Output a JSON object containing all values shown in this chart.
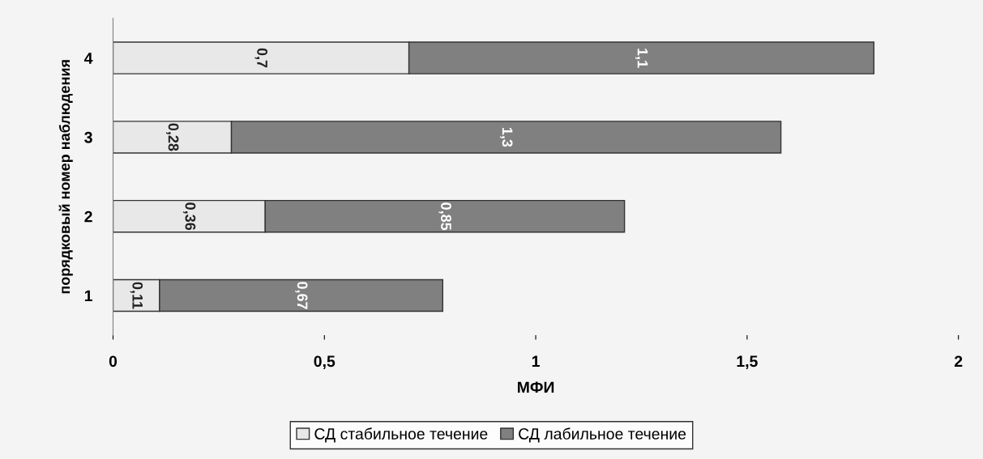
{
  "chart_data": {
    "type": "bar",
    "orientation": "horizontal",
    "stacked": true,
    "xlabel": "МФИ",
    "ylabel": "порядковый номер наблюдения",
    "categories": [
      "4",
      "3",
      "2",
      "1"
    ],
    "series": [
      {
        "name": "СД стабильное течение",
        "color": "#e8e8e8",
        "values": [
          0.7,
          0.28,
          0.36,
          0.11
        ],
        "value_labels": [
          "0,7",
          "0,28",
          "0,36",
          "0,11"
        ]
      },
      {
        "name": "СД лабильное течение",
        "color": "#808080",
        "values": [
          1.1,
          1.3,
          0.85,
          0.67
        ],
        "value_labels": [
          "1,1",
          "1,3",
          "0,85",
          "0,67"
        ]
      }
    ],
    "xlim": [
      0,
      2
    ],
    "xticks": [
      0,
      {
        "value": 0.5,
        "label": "0,5"
      },
      1,
      {
        "value": 1.5,
        "label": "1,5"
      },
      2
    ],
    "grid": false,
    "legend": "bottom"
  }
}
